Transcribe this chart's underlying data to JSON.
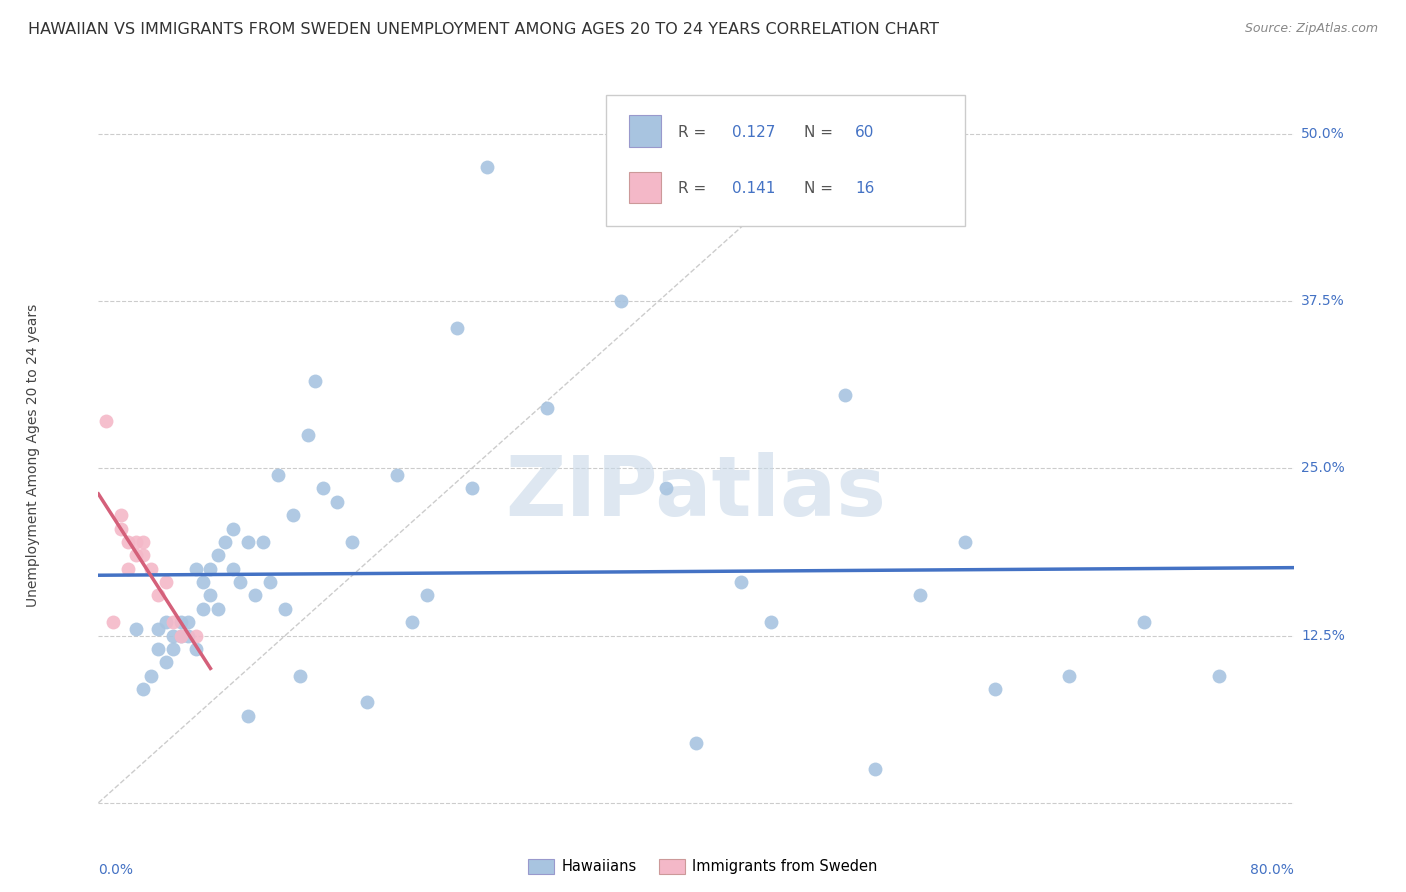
{
  "title": "HAWAIIAN VS IMMIGRANTS FROM SWEDEN UNEMPLOYMENT AMONG AGES 20 TO 24 YEARS CORRELATION CHART",
  "source": "Source: ZipAtlas.com",
  "ylabel": "Unemployment Among Ages 20 to 24 years",
  "yticks": [
    0.0,
    0.125,
    0.25,
    0.375,
    0.5
  ],
  "ytick_labels": [
    "",
    "12.5%",
    "25.0%",
    "37.5%",
    "50.0%"
  ],
  "xlim": [
    0.0,
    0.8
  ],
  "ylim": [
    -0.02,
    0.54
  ],
  "watermark_text": "ZIPatlas",
  "legend_r1": "0.127",
  "legend_n1": "60",
  "legend_r2": "0.141",
  "legend_n2": "16",
  "hawaiians_x": [
    0.025,
    0.03,
    0.035,
    0.04,
    0.04,
    0.045,
    0.045,
    0.05,
    0.05,
    0.055,
    0.055,
    0.06,
    0.06,
    0.065,
    0.065,
    0.07,
    0.07,
    0.075,
    0.075,
    0.08,
    0.08,
    0.085,
    0.09,
    0.09,
    0.095,
    0.1,
    0.1,
    0.105,
    0.11,
    0.115,
    0.12,
    0.125,
    0.13,
    0.135,
    0.14,
    0.145,
    0.15,
    0.16,
    0.17,
    0.18,
    0.2,
    0.21,
    0.22,
    0.24,
    0.25,
    0.26,
    0.3,
    0.35,
    0.38,
    0.4,
    0.43,
    0.45,
    0.5,
    0.52,
    0.55,
    0.58,
    0.6,
    0.65,
    0.7,
    0.75
  ],
  "hawaiians_y": [
    0.13,
    0.085,
    0.095,
    0.115,
    0.13,
    0.105,
    0.135,
    0.125,
    0.115,
    0.135,
    0.125,
    0.135,
    0.125,
    0.115,
    0.175,
    0.165,
    0.145,
    0.155,
    0.175,
    0.185,
    0.145,
    0.195,
    0.175,
    0.205,
    0.165,
    0.065,
    0.195,
    0.155,
    0.195,
    0.165,
    0.245,
    0.145,
    0.215,
    0.095,
    0.275,
    0.315,
    0.235,
    0.225,
    0.195,
    0.075,
    0.245,
    0.135,
    0.155,
    0.355,
    0.235,
    0.475,
    0.295,
    0.375,
    0.235,
    0.045,
    0.165,
    0.135,
    0.305,
    0.025,
    0.155,
    0.195,
    0.085,
    0.095,
    0.135,
    0.095
  ],
  "sweden_x": [
    0.005,
    0.01,
    0.015,
    0.015,
    0.02,
    0.02,
    0.025,
    0.025,
    0.03,
    0.03,
    0.035,
    0.04,
    0.045,
    0.05,
    0.055,
    0.065
  ],
  "sweden_y": [
    0.285,
    0.135,
    0.215,
    0.205,
    0.195,
    0.175,
    0.195,
    0.185,
    0.195,
    0.185,
    0.175,
    0.155,
    0.165,
    0.135,
    0.125,
    0.125
  ],
  "hawaii_color": "#a8c4e0",
  "sweden_color": "#f4b8c8",
  "hawaii_line_color": "#4472c4",
  "sweden_line_color": "#d4607a",
  "diagonal_color": "#cccccc",
  "grid_color": "#cccccc",
  "tick_color": "#4472c4",
  "background_color": "#ffffff",
  "title_fontsize": 11.5,
  "source_fontsize": 9,
  "axis_label_fontsize": 10,
  "tick_fontsize": 10,
  "legend_fontsize": 11,
  "marker_size": 100
}
